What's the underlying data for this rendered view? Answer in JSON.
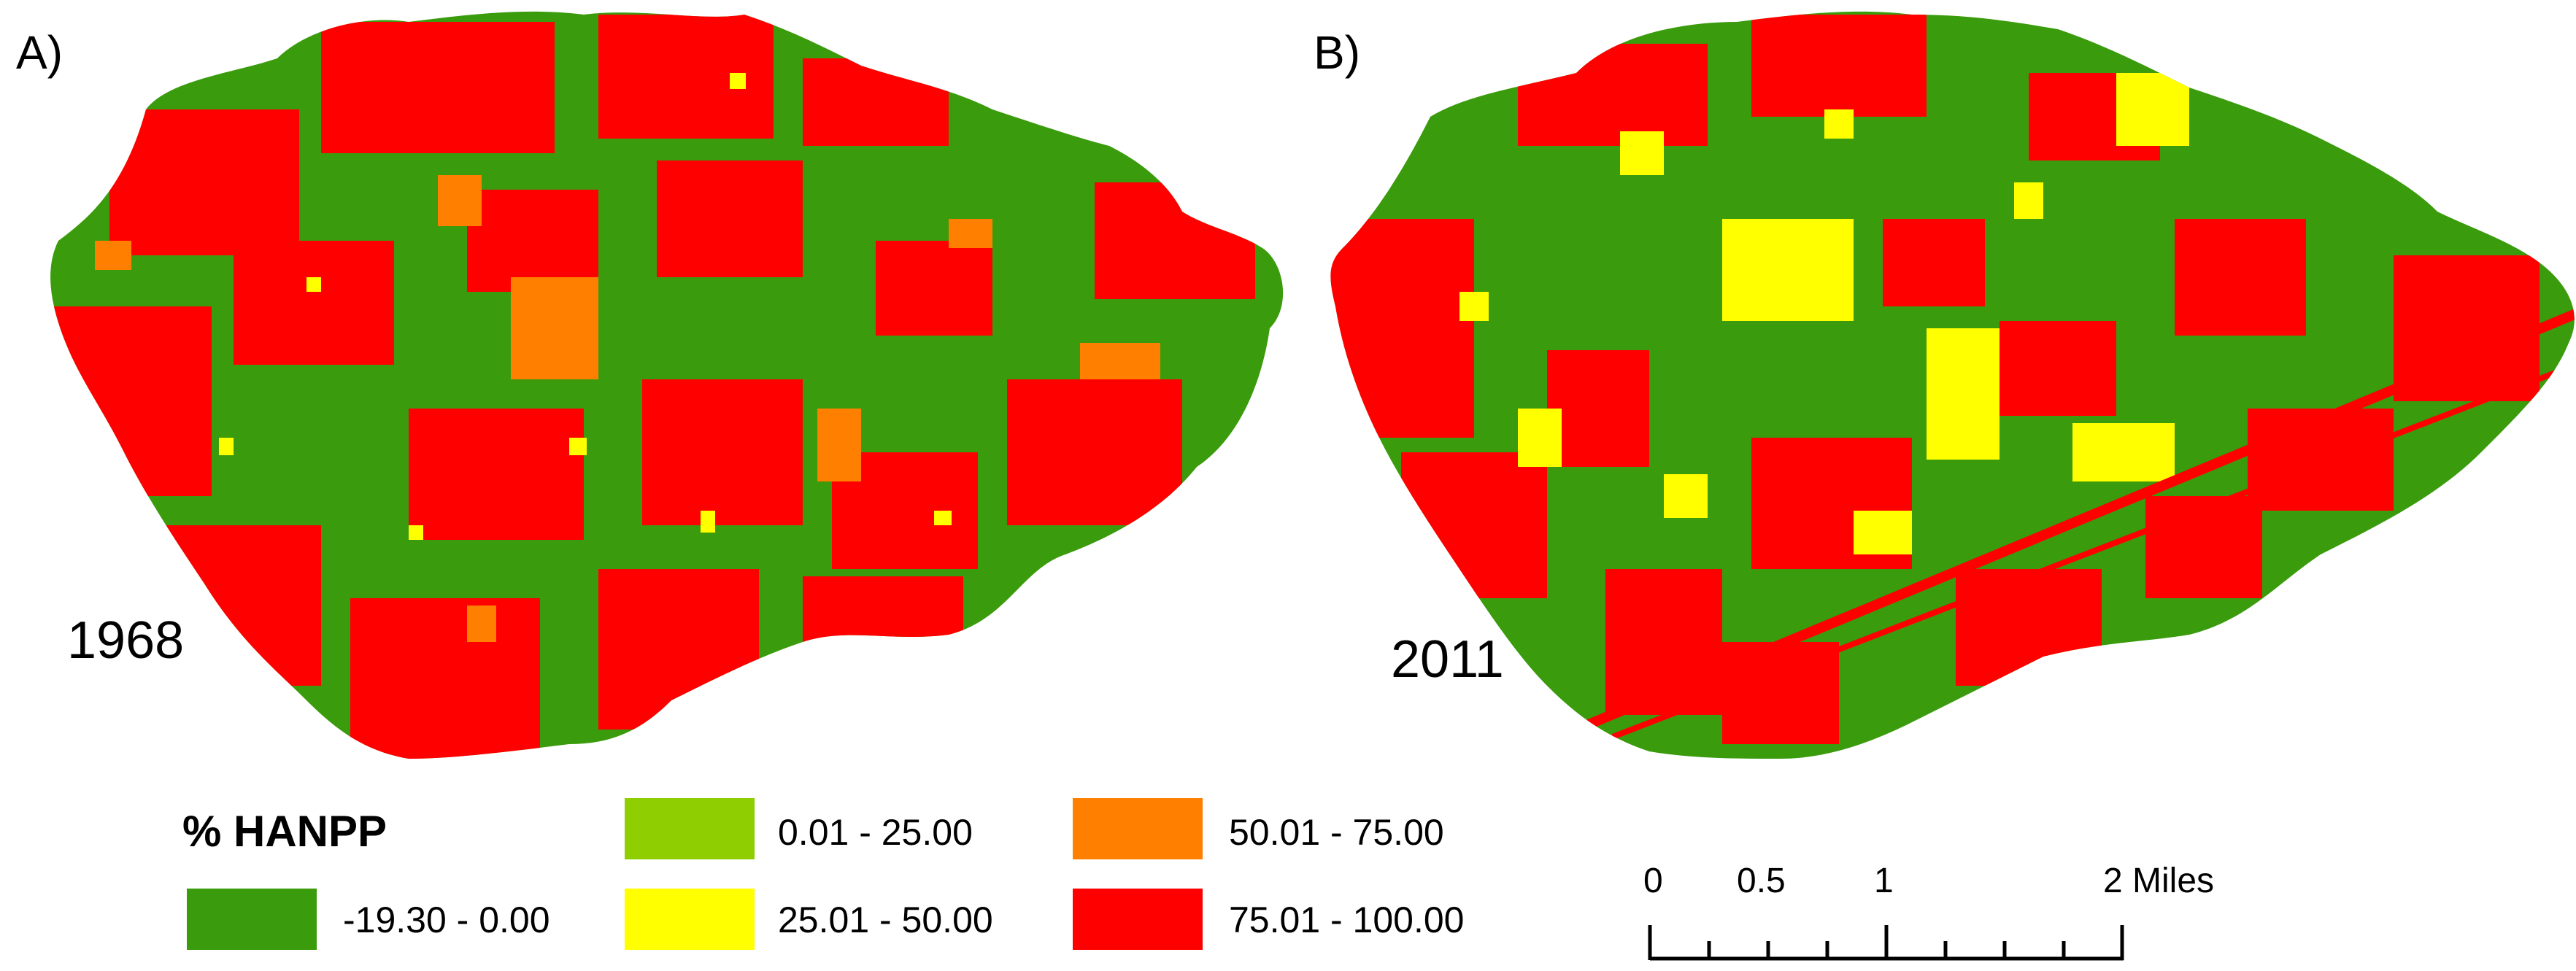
{
  "panels": [
    {
      "letter": "A)",
      "year": "1968"
    },
    {
      "letter": "B)",
      "year": "2011"
    }
  ],
  "legend": {
    "title": "% HANPP",
    "classes": [
      {
        "label": "-19.30 - 0.00",
        "color": "#3a9b0c"
      },
      {
        "label": "0.01 - 25.00",
        "color": "#8fce00"
      },
      {
        "label": "25.01 - 50.00",
        "color": "#ffff00"
      },
      {
        "label": "50.01 - 75.00",
        "color": "#ff7f00"
      },
      {
        "label": "75.01 - 100.00",
        "color": "#ff0000"
      }
    ]
  },
  "scale_bar": {
    "labels": [
      "0",
      "0.5",
      "1",
      "2 Miles"
    ]
  },
  "colors": {
    "green": "#3a9b0c",
    "red": "#ff0000",
    "yellow": "#ffff00",
    "orange": "#ff7f00"
  }
}
